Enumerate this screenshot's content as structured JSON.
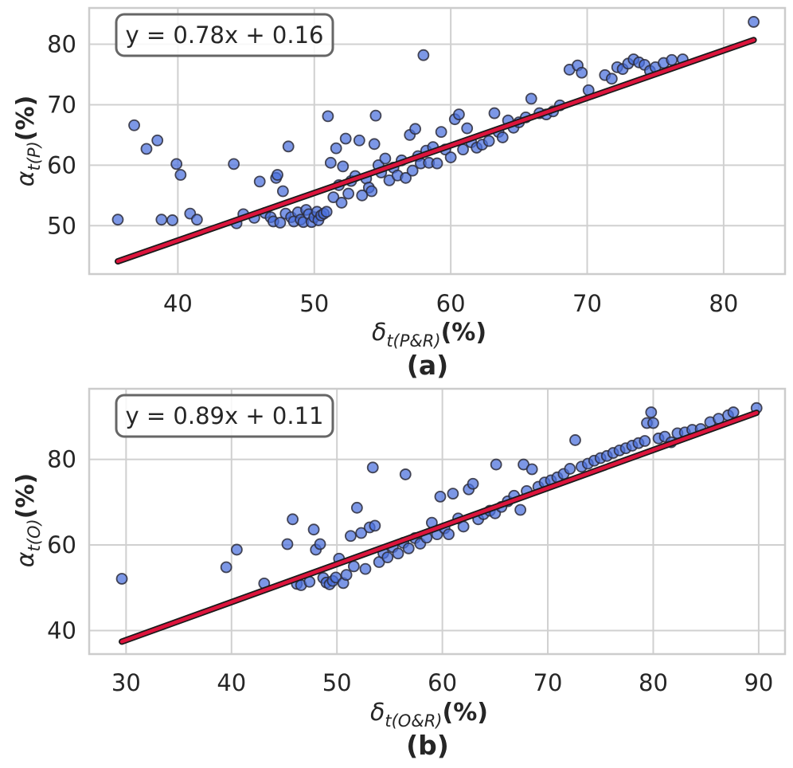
{
  "colors": {
    "point_fill": "#4a6fdc",
    "point_stroke": "#2b2b3a",
    "fit_line": "#dc143c",
    "fit_line_edge": "#1a1a1a",
    "grid": "#d0d0d0",
    "axes_frame": "#cccccc",
    "equation_box_edge": "#666666"
  },
  "chart_data": [
    {
      "type": "scatter",
      "panel_label": "(a)",
      "equation": "y = 0.78x + 0.16",
      "fit": {
        "slope": 0.78,
        "intercept": 0.16,
        "x_range": [
          35.6,
          82.2
        ],
        "y_range": [
          44.1,
          80.7
        ]
      },
      "xlabel_var": "δ",
      "xlabel_sub": "t(P&R)",
      "xlabel_unit": "(%)",
      "ylabel_var": "α",
      "ylabel_sub": "t(P)",
      "ylabel_unit": "(%)",
      "xlim": [
        33.5,
        84.5
      ],
      "ylim": [
        42,
        86
      ],
      "xticks": [
        40,
        50,
        60,
        70,
        80
      ],
      "yticks": [
        50,
        60,
        70,
        80
      ],
      "xtick_labels": [
        "40",
        "50",
        "60",
        "70",
        "80"
      ],
      "ytick_labels": [
        "50",
        "60",
        "70",
        "80"
      ],
      "points": [
        [
          35.6,
          51.0
        ],
        [
          36.8,
          66.6
        ],
        [
          37.7,
          62.7
        ],
        [
          38.5,
          64.1
        ],
        [
          38.8,
          51.0
        ],
        [
          39.6,
          50.9
        ],
        [
          39.9,
          60.2
        ],
        [
          40.2,
          58.4
        ],
        [
          40.9,
          52.0
        ],
        [
          41.4,
          51.0
        ],
        [
          44.1,
          60.2
        ],
        [
          44.3,
          50.4
        ],
        [
          44.8,
          51.9
        ],
        [
          45.6,
          51.3
        ],
        [
          46.0,
          57.3
        ],
        [
          46.4,
          52.1
        ],
        [
          46.8,
          51.4
        ],
        [
          47.0,
          50.7
        ],
        [
          47.2,
          57.9
        ],
        [
          47.3,
          58.4
        ],
        [
          47.5,
          50.5
        ],
        [
          47.7,
          55.7
        ],
        [
          47.9,
          52.0
        ],
        [
          48.1,
          63.1
        ],
        [
          48.3,
          51.4
        ],
        [
          48.5,
          50.7
        ],
        [
          48.8,
          52.2
        ],
        [
          49.0,
          51.0
        ],
        [
          49.2,
          50.6
        ],
        [
          49.4,
          52.6
        ],
        [
          49.6,
          51.9
        ],
        [
          49.8,
          50.6
        ],
        [
          50.0,
          51.4
        ],
        [
          50.2,
          52.3
        ],
        [
          50.3,
          50.9
        ],
        [
          50.5,
          51.7
        ],
        [
          50.7,
          52.0
        ],
        [
          50.9,
          52.3
        ],
        [
          51.0,
          68.1
        ],
        [
          51.2,
          60.4
        ],
        [
          51.4,
          54.7
        ],
        [
          51.6,
          62.8
        ],
        [
          51.8,
          56.7
        ],
        [
          52.0,
          53.8
        ],
        [
          52.1,
          59.8
        ],
        [
          52.3,
          64.4
        ],
        [
          52.5,
          55.3
        ],
        [
          52.7,
          57.4
        ],
        [
          53.0,
          58.2
        ],
        [
          53.3,
          64.1
        ],
        [
          53.5,
          55.0
        ],
        [
          53.8,
          57.8
        ],
        [
          54.0,
          56.3
        ],
        [
          54.2,
          55.7
        ],
        [
          54.4,
          63.5
        ],
        [
          54.5,
          68.2
        ],
        [
          54.7,
          60.0
        ],
        [
          54.9,
          58.8
        ],
        [
          55.2,
          61.1
        ],
        [
          55.5,
          57.5
        ],
        [
          55.8,
          59.6
        ],
        [
          56.1,
          58.3
        ],
        [
          56.4,
          60.8
        ],
        [
          56.7,
          57.9
        ],
        [
          57.0,
          65.0
        ],
        [
          57.2,
          59.1
        ],
        [
          57.4,
          66.0
        ],
        [
          57.6,
          61.5
        ],
        [
          57.8,
          60.3
        ],
        [
          58.0,
          78.2
        ],
        [
          58.2,
          62.4
        ],
        [
          58.4,
          60.4
        ],
        [
          58.7,
          63.0
        ],
        [
          59.0,
          60.3
        ],
        [
          59.3,
          65.5
        ],
        [
          59.6,
          62.6
        ],
        [
          60.0,
          61.3
        ],
        [
          60.3,
          67.6
        ],
        [
          60.6,
          68.4
        ],
        [
          60.9,
          62.6
        ],
        [
          61.2,
          66.1
        ],
        [
          61.5,
          63.8
        ],
        [
          61.9,
          62.9
        ],
        [
          62.3,
          63.4
        ],
        [
          62.8,
          64.0
        ],
        [
          63.2,
          68.6
        ],
        [
          63.5,
          65.5
        ],
        [
          63.8,
          64.6
        ],
        [
          64.2,
          67.4
        ],
        [
          64.6,
          66.2
        ],
        [
          65.0,
          67.1
        ],
        [
          65.5,
          67.9
        ],
        [
          65.9,
          71.0
        ],
        [
          66.5,
          68.6
        ],
        [
          67.0,
          68.4
        ],
        [
          67.5,
          68.9
        ],
        [
          68.0,
          69.9
        ],
        [
          68.7,
          75.8
        ],
        [
          69.3,
          76.5
        ],
        [
          69.6,
          75.3
        ],
        [
          70.1,
          72.4
        ],
        [
          71.3,
          74.9
        ],
        [
          71.8,
          74.3
        ],
        [
          72.2,
          76.2
        ],
        [
          72.6,
          75.9
        ],
        [
          73.0,
          76.8
        ],
        [
          73.4,
          77.5
        ],
        [
          73.8,
          77.0
        ],
        [
          74.2,
          76.6
        ],
        [
          74.6,
          75.6
        ],
        [
          75.0,
          76.2
        ],
        [
          75.6,
          76.9
        ],
        [
          76.2,
          77.4
        ],
        [
          77.0,
          77.5
        ],
        [
          82.2,
          83.7
        ]
      ]
    },
    {
      "type": "scatter",
      "panel_label": "(b)",
      "equation": "y = 0.89x + 0.11",
      "fit": {
        "slope": 0.89,
        "intercept": 0.11,
        "x_range": [
          29.6,
          89.8
        ],
        "y_range": [
          37.4,
          90.9
        ]
      },
      "xlabel_var": "δ",
      "xlabel_sub": "t(O&R)",
      "xlabel_unit": "(%)",
      "ylabel_var": "α",
      "ylabel_sub": "t(O)",
      "ylabel_unit": "(%)",
      "xlim": [
        26.5,
        92.5
      ],
      "ylim": [
        34.5,
        96.5
      ],
      "xticks": [
        30,
        40,
        50,
        60,
        70,
        80,
        90
      ],
      "yticks": [
        40,
        60,
        80
      ],
      "xtick_labels": [
        "30",
        "40",
        "50",
        "60",
        "70",
        "80",
        "90"
      ],
      "ytick_labels": [
        "40",
        "60",
        "80"
      ],
      "points": [
        [
          29.6,
          52.1
        ],
        [
          39.5,
          54.8
        ],
        [
          40.5,
          58.9
        ],
        [
          43.1,
          51.0
        ],
        [
          45.3,
          60.2
        ],
        [
          45.8,
          66.0
        ],
        [
          46.2,
          50.9
        ],
        [
          46.6,
          50.6
        ],
        [
          47.4,
          51.4
        ],
        [
          47.8,
          63.6
        ],
        [
          48.0,
          58.9
        ],
        [
          48.4,
          60.2
        ],
        [
          48.7,
          52.3
        ],
        [
          49.0,
          51.2
        ],
        [
          49.3,
          50.8
        ],
        [
          49.6,
          51.6
        ],
        [
          49.9,
          52.4
        ],
        [
          50.2,
          56.8
        ],
        [
          50.6,
          51.1
        ],
        [
          50.9,
          53.0
        ],
        [
          51.3,
          62.1
        ],
        [
          51.6,
          55.0
        ],
        [
          51.9,
          68.7
        ],
        [
          52.3,
          62.8
        ],
        [
          52.7,
          54.4
        ],
        [
          53.1,
          64.1
        ],
        [
          53.4,
          78.1
        ],
        [
          53.6,
          64.5
        ],
        [
          54.0,
          56.0
        ],
        [
          54.4,
          58.1
        ],
        [
          54.8,
          57.1
        ],
        [
          55.3,
          59.5
        ],
        [
          55.8,
          58.0
        ],
        [
          56.3,
          60.5
        ],
        [
          56.5,
          76.5
        ],
        [
          56.8,
          59.2
        ],
        [
          57.4,
          61.6
        ],
        [
          57.9,
          60.3
        ],
        [
          58.5,
          61.7
        ],
        [
          59.0,
          65.2
        ],
        [
          59.5,
          62.5
        ],
        [
          59.8,
          71.3
        ],
        [
          60.2,
          63.9
        ],
        [
          60.6,
          62.5
        ],
        [
          61.0,
          72.0
        ],
        [
          61.5,
          66.2
        ],
        [
          62.0,
          64.3
        ],
        [
          62.5,
          73.0
        ],
        [
          62.9,
          74.3
        ],
        [
          63.4,
          66.0
        ],
        [
          63.9,
          67.2
        ],
        [
          64.5,
          68.0
        ],
        [
          65.0,
          67.4
        ],
        [
          65.1,
          78.8
        ],
        [
          65.6,
          68.9
        ],
        [
          66.2,
          70.2
        ],
        [
          66.8,
          71.5
        ],
        [
          67.4,
          68.2
        ],
        [
          67.7,
          78.8
        ],
        [
          68.0,
          72.6
        ],
        [
          68.5,
          77.7
        ],
        [
          69.1,
          73.6
        ],
        [
          69.7,
          74.6
        ],
        [
          70.3,
          75.1
        ],
        [
          70.9,
          75.8
        ],
        [
          71.5,
          76.6
        ],
        [
          72.1,
          77.8
        ],
        [
          72.6,
          84.5
        ],
        [
          73.2,
          78.3
        ],
        [
          73.8,
          79.0
        ],
        [
          74.4,
          79.7
        ],
        [
          75.0,
          80.3
        ],
        [
          75.6,
          80.8
        ],
        [
          76.2,
          81.5
        ],
        [
          76.8,
          82.1
        ],
        [
          77.4,
          82.6
        ],
        [
          78.0,
          83.2
        ],
        [
          78.6,
          83.8
        ],
        [
          79.2,
          84.3
        ],
        [
          79.4,
          88.5
        ],
        [
          79.8,
          91.0
        ],
        [
          80.0,
          88.5
        ],
        [
          80.5,
          84.9
        ],
        [
          81.1,
          85.3
        ],
        [
          81.7,
          84.0
        ],
        [
          82.3,
          86.1
        ],
        [
          83.0,
          86.3
        ],
        [
          83.7,
          86.9
        ],
        [
          84.5,
          87.1
        ],
        [
          85.4,
          88.7
        ],
        [
          86.2,
          89.5
        ],
        [
          87.1,
          90.3
        ],
        [
          87.6,
          91.0
        ],
        [
          89.8,
          92.0
        ]
      ]
    }
  ]
}
